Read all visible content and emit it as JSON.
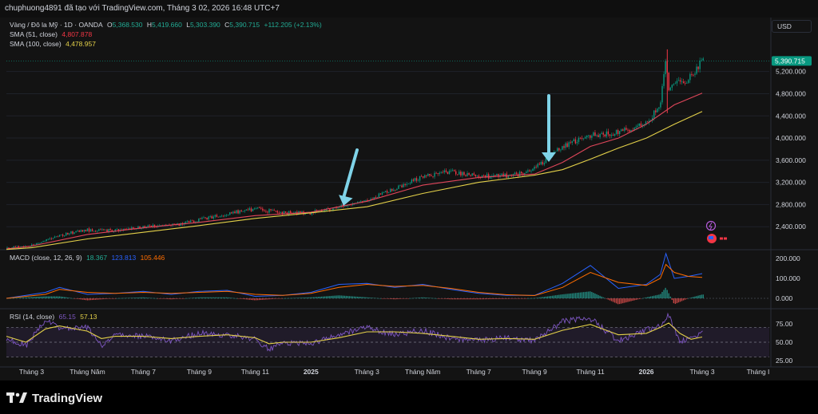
{
  "header": {
    "credit": "chuphuong4891 đã tạo với TradingView.com, Tháng 3 02, 2026 16:48 UTC+7"
  },
  "toolbar": {
    "currency": "USD"
  },
  "brand": {
    "name": "TradingView"
  },
  "colors": {
    "background": "#131313",
    "up": "#089981",
    "down": "#f23645",
    "sma51": "#e0465a",
    "sma100": "#e3d049",
    "macd": "#2962ff",
    "signal": "#ff6d00",
    "rsi": "#7e57c2",
    "rsi_ma": "#e3d049",
    "arrow": "#7fd3e8",
    "last_price_bg": "#089981"
  },
  "icons": [
    "lightning-icon",
    "us-flag-icon",
    "tradingview-logo-icon",
    "down-arrow-annotation"
  ],
  "chart_data": [
    {
      "type": "line",
      "pane": "price",
      "title": "Vàng / Đô la Mỹ · 1D · OANDA",
      "ohlc": {
        "o_label": "O",
        "o": "5,368.530",
        "h_label": "H",
        "h": "5,419.660",
        "l_label": "L",
        "l": "5,303.390",
        "c_label": "C",
        "c": "5,390.715",
        "change": "+112.205 (+2.13%)"
      },
      "last_price": "5,390.715",
      "y_ticks": [
        "5,200.000",
        "4,800.000",
        "4,400.000",
        "4,000.000",
        "3,600.000",
        "3,200.000",
        "2,800.000",
        "2,400.000"
      ],
      "y_tick_values": [
        5200,
        4800,
        4400,
        4000,
        3600,
        3200,
        2800,
        2400
      ],
      "ylim": [
        2000,
        5800
      ],
      "x_ticks": [
        "Tháng 3",
        "Tháng Năm",
        "Tháng 7",
        "Tháng 9",
        "Tháng 11",
        "2025",
        "Tháng 3",
        "Tháng Năm",
        "Tháng 7",
        "Tháng 9",
        "Tháng 11",
        "2026",
        "Tháng 3",
        "Tháng I"
      ],
      "x_tick_index": [
        0,
        2,
        4,
        6,
        8,
        10,
        12,
        14,
        16,
        18,
        20,
        22,
        24,
        26
      ],
      "x_range_months": [
        -0.9,
        26.4
      ],
      "price_months": [
        -0.9,
        0,
        1,
        2,
        3,
        4,
        5,
        6,
        7,
        8,
        9,
        10,
        11,
        12,
        13,
        14,
        15,
        16,
        17,
        17.5,
        18,
        19,
        20,
        21,
        22,
        22.5,
        22.7,
        22.8,
        23,
        23.5,
        24
      ],
      "price_close": [
        2020,
        2060,
        2250,
        2340,
        2330,
        2400,
        2420,
        2520,
        2640,
        2720,
        2650,
        2650,
        2750,
        2870,
        3100,
        3300,
        3400,
        3300,
        3320,
        3350,
        3450,
        3850,
        4050,
        4100,
        4250,
        4600,
        5500,
        4850,
        5000,
        5050,
        5390
      ],
      "series": [
        {
          "name": "SMA (51, close)",
          "value": "4,807.878",
          "x": [
            -0.9,
            0,
            2,
            4,
            6,
            8,
            10,
            12,
            14,
            16,
            18,
            19,
            20,
            21,
            22,
            23,
            24
          ],
          "y": [
            2000,
            2050,
            2260,
            2380,
            2480,
            2600,
            2660,
            2860,
            3150,
            3290,
            3350,
            3560,
            3850,
            4000,
            4250,
            4600,
            4810
          ]
        },
        {
          "name": "SMA (100, close)",
          "value": "4,478.957",
          "x": [
            -0.9,
            0,
            2,
            4,
            6,
            8,
            10,
            12,
            14,
            16,
            18,
            19,
            20,
            21,
            22,
            23,
            24
          ],
          "y": [
            1990,
            2020,
            2180,
            2300,
            2420,
            2550,
            2650,
            2760,
            3000,
            3200,
            3330,
            3430,
            3620,
            3820,
            4000,
            4250,
            4480
          ]
        }
      ]
    },
    {
      "type": "line",
      "pane": "macd",
      "title": "MACD (close, 12, 26, 9)",
      "values": {
        "histogram": "18.367",
        "macd": "123.813",
        "signal": "105.446"
      },
      "y_ticks": [
        "200.000",
        "100.000",
        "0.000"
      ],
      "y_tick_values": [
        200,
        100,
        0
      ],
      "ylim": [
        -40,
        240
      ],
      "x": [
        -0.9,
        0.5,
        1,
        2,
        3,
        4,
        5,
        6,
        7,
        8,
        9,
        10,
        11,
        12,
        13,
        14,
        15,
        16,
        17,
        18,
        19,
        20,
        21,
        22,
        22.5,
        22.7,
        23,
        23.5,
        24
      ],
      "series": [
        {
          "name": "MACD",
          "y": [
            0,
            30,
            55,
            20,
            25,
            35,
            20,
            35,
            40,
            10,
            15,
            30,
            70,
            75,
            55,
            70,
            45,
            25,
            15,
            15,
            75,
            165,
            50,
            70,
            120,
            225,
            100,
            110,
            124
          ]
        },
        {
          "name": "Signal",
          "y": [
            0,
            20,
            45,
            30,
            25,
            30,
            25,
            30,
            35,
            20,
            15,
            25,
            55,
            70,
            60,
            65,
            50,
            30,
            18,
            14,
            55,
            130,
            80,
            65,
            100,
            170,
            130,
            110,
            105
          ]
        }
      ]
    },
    {
      "type": "line",
      "pane": "rsi",
      "title": "RSI (14, close)",
      "values": {
        "rsi": "65.15",
        "ma": "57.13"
      },
      "y_ticks": [
        "75.00",
        "50.00",
        "25.00"
      ],
      "y_tick_values": [
        75,
        50,
        25
      ],
      "ylim": [
        22,
        92
      ],
      "band": [
        30,
        70
      ],
      "x": [
        -0.9,
        -0.2,
        0.5,
        1,
        2,
        2.5,
        3,
        4,
        5,
        6,
        7,
        8,
        8.5,
        9,
        10,
        11,
        12,
        13,
        14,
        15,
        16,
        17,
        18,
        19,
        20,
        21,
        22,
        22.5,
        22.8,
        23.2,
        23.6,
        24
      ],
      "series": [
        {
          "name": "RSI",
          "y": [
            55,
            45,
            80,
            68,
            70,
            45,
            60,
            58,
            52,
            62,
            60,
            54,
            40,
            50,
            48,
            60,
            70,
            60,
            66,
            55,
            52,
            56,
            52,
            78,
            82,
            52,
            66,
            72,
            86,
            50,
            55,
            65
          ]
        },
        {
          "name": "MA",
          "y": [
            58,
            50,
            68,
            72,
            65,
            55,
            58,
            58,
            55,
            58,
            60,
            56,
            48,
            50,
            50,
            56,
            64,
            64,
            62,
            58,
            54,
            55,
            54,
            66,
            74,
            60,
            62,
            70,
            76,
            62,
            54,
            57
          ]
        }
      ]
    }
  ]
}
